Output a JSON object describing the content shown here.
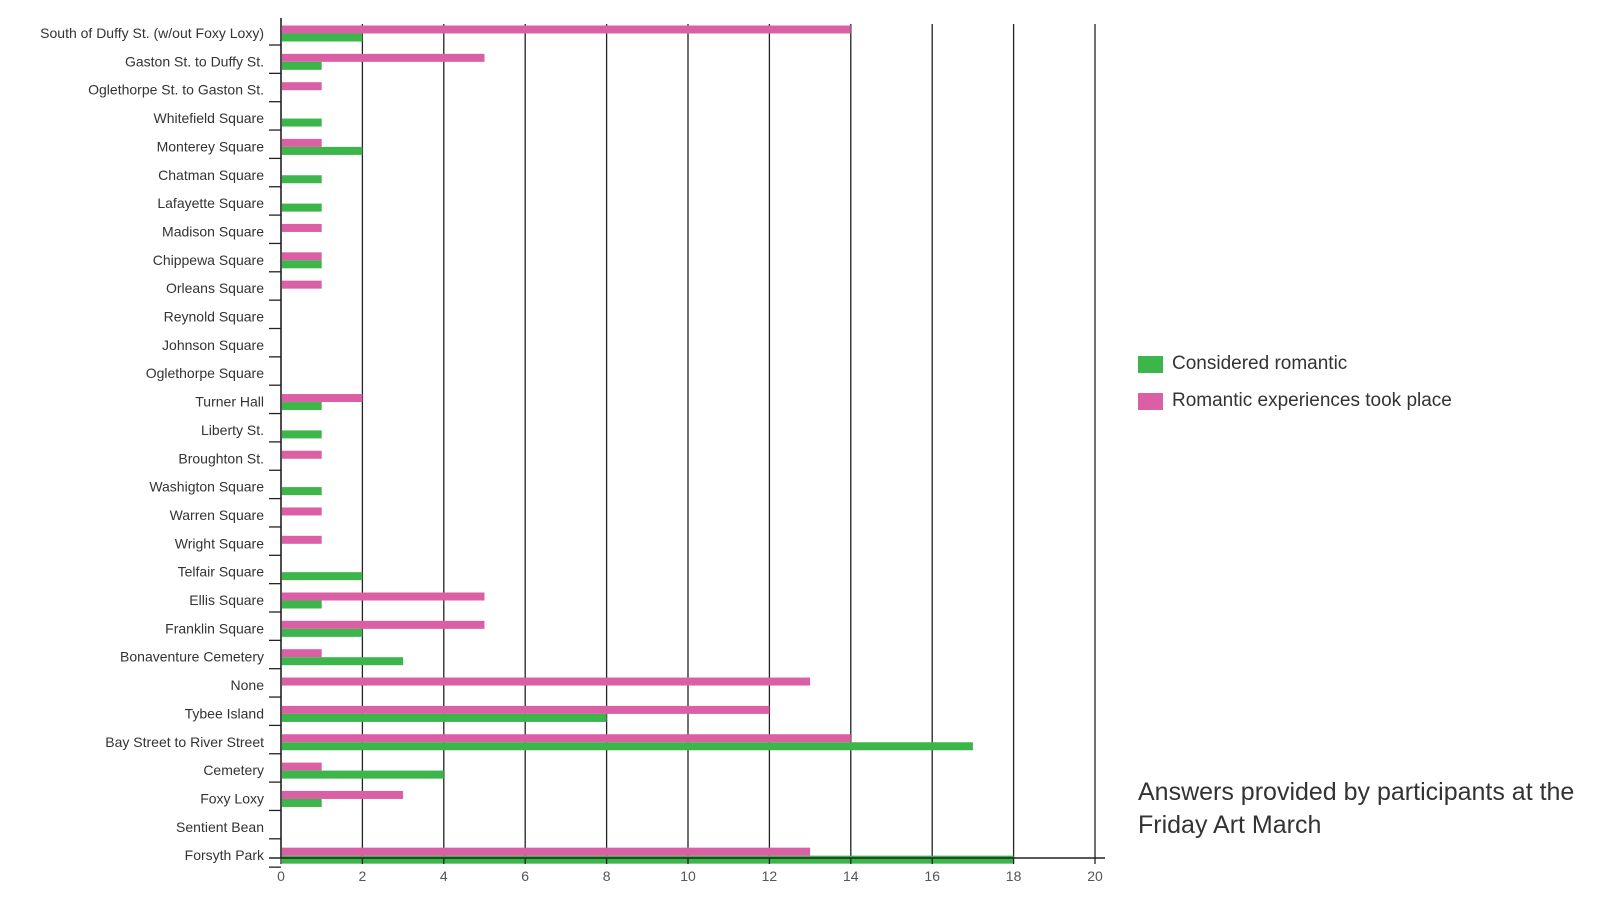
{
  "chart_data": {
    "type": "bar",
    "orientation": "horizontal",
    "title": "",
    "xlabel": "",
    "ylabel": "",
    "xlim": [
      0,
      20
    ],
    "xticks": [
      "0",
      "2",
      "4",
      "6",
      "8",
      "10",
      "12",
      "14",
      "16",
      "18",
      "20"
    ],
    "grid": "vertical",
    "legend_position": "right",
    "categories": [
      "South of Duffy St. (w/out Foxy Loxy)",
      "Gaston St. to Duffy St.",
      "Oglethorpe St. to Gaston St.",
      "Whitefield Square",
      "Monterey Square",
      "Chatman Square",
      "Lafayette Square",
      "Madison Square",
      "Chippewa Square",
      "Orleans Square",
      "Reynold Square",
      "Johnson Square",
      "Oglethorpe Square",
      "Turner Hall",
      "Liberty St.",
      "Broughton St.",
      "Washigton Square",
      "Warren Square",
      "Wright Square",
      "Telfair Square",
      "Ellis Square",
      "Franklin Square",
      "Bonaventure Cemetery",
      "None",
      "Tybee Island",
      "Bay Street to River Street",
      "Cemetery",
      "Foxy Loxy",
      "Sentient Bean",
      "Forsyth Park"
    ],
    "series": [
      {
        "name": "Romantic experiences took place",
        "color": "#db5fa5",
        "values": [
          14,
          5,
          1,
          0,
          1,
          0,
          0,
          1,
          1,
          1,
          0,
          0,
          0,
          2,
          0,
          1,
          0,
          1,
          1,
          0,
          5,
          5,
          1,
          13,
          12,
          14,
          1,
          3,
          0,
          13
        ]
      },
      {
        "name": "Considered romantic",
        "color": "#3cb54a",
        "values": [
          2,
          1,
          0,
          1,
          2,
          1,
          1,
          0,
          1,
          0,
          0,
          0,
          0,
          1,
          1,
          0,
          1,
          0,
          0,
          2,
          1,
          2,
          3,
          0,
          8,
          17,
          4,
          1,
          0,
          18
        ]
      }
    ]
  },
  "legend": {
    "items": [
      {
        "label": "Considered romantic",
        "color": "#3cb54a"
      },
      {
        "label": "Romantic experiences took place",
        "color": "#db5fa5"
      }
    ]
  },
  "note": "Answers provided by participants at the Friday Art March",
  "colors": {
    "axis": "#222222",
    "grid": "#222222"
  }
}
